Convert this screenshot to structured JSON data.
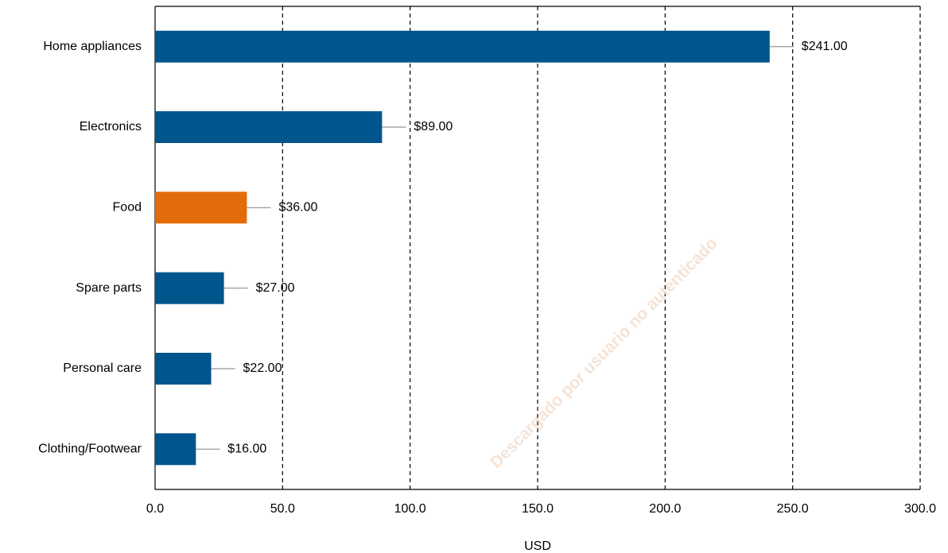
{
  "chart_data": {
    "type": "bar",
    "orientation": "horizontal",
    "categories": [
      "Home appliances",
      "Electronics",
      "Food",
      "Spare parts",
      "Personal care",
      "Clothing/Footwear"
    ],
    "values": [
      241,
      89,
      36,
      27,
      22,
      16
    ],
    "value_labels": [
      "$241.00",
      "$89.00",
      "$36.00",
      "$27.00",
      "$22.00",
      "$16.00"
    ],
    "colors": [
      "#00558c",
      "#00558c",
      "#e36c0a",
      "#00558c",
      "#00558c",
      "#00558c"
    ],
    "xlabel": "USD",
    "xlim": [
      0,
      300
    ],
    "xticks": [
      {
        "value": 0,
        "label": "0.0"
      },
      {
        "value": 50,
        "label": "50.0"
      },
      {
        "value": 100,
        "label": "100.0"
      },
      {
        "value": 150,
        "label": "150.0"
      },
      {
        "value": 200,
        "label": "200.0"
      },
      {
        "value": 250,
        "label": "250.0"
      },
      {
        "value": 300,
        "label": "300.0"
      }
    ],
    "grid": true,
    "watermark": "Descargado por usuario no autenticado"
  }
}
